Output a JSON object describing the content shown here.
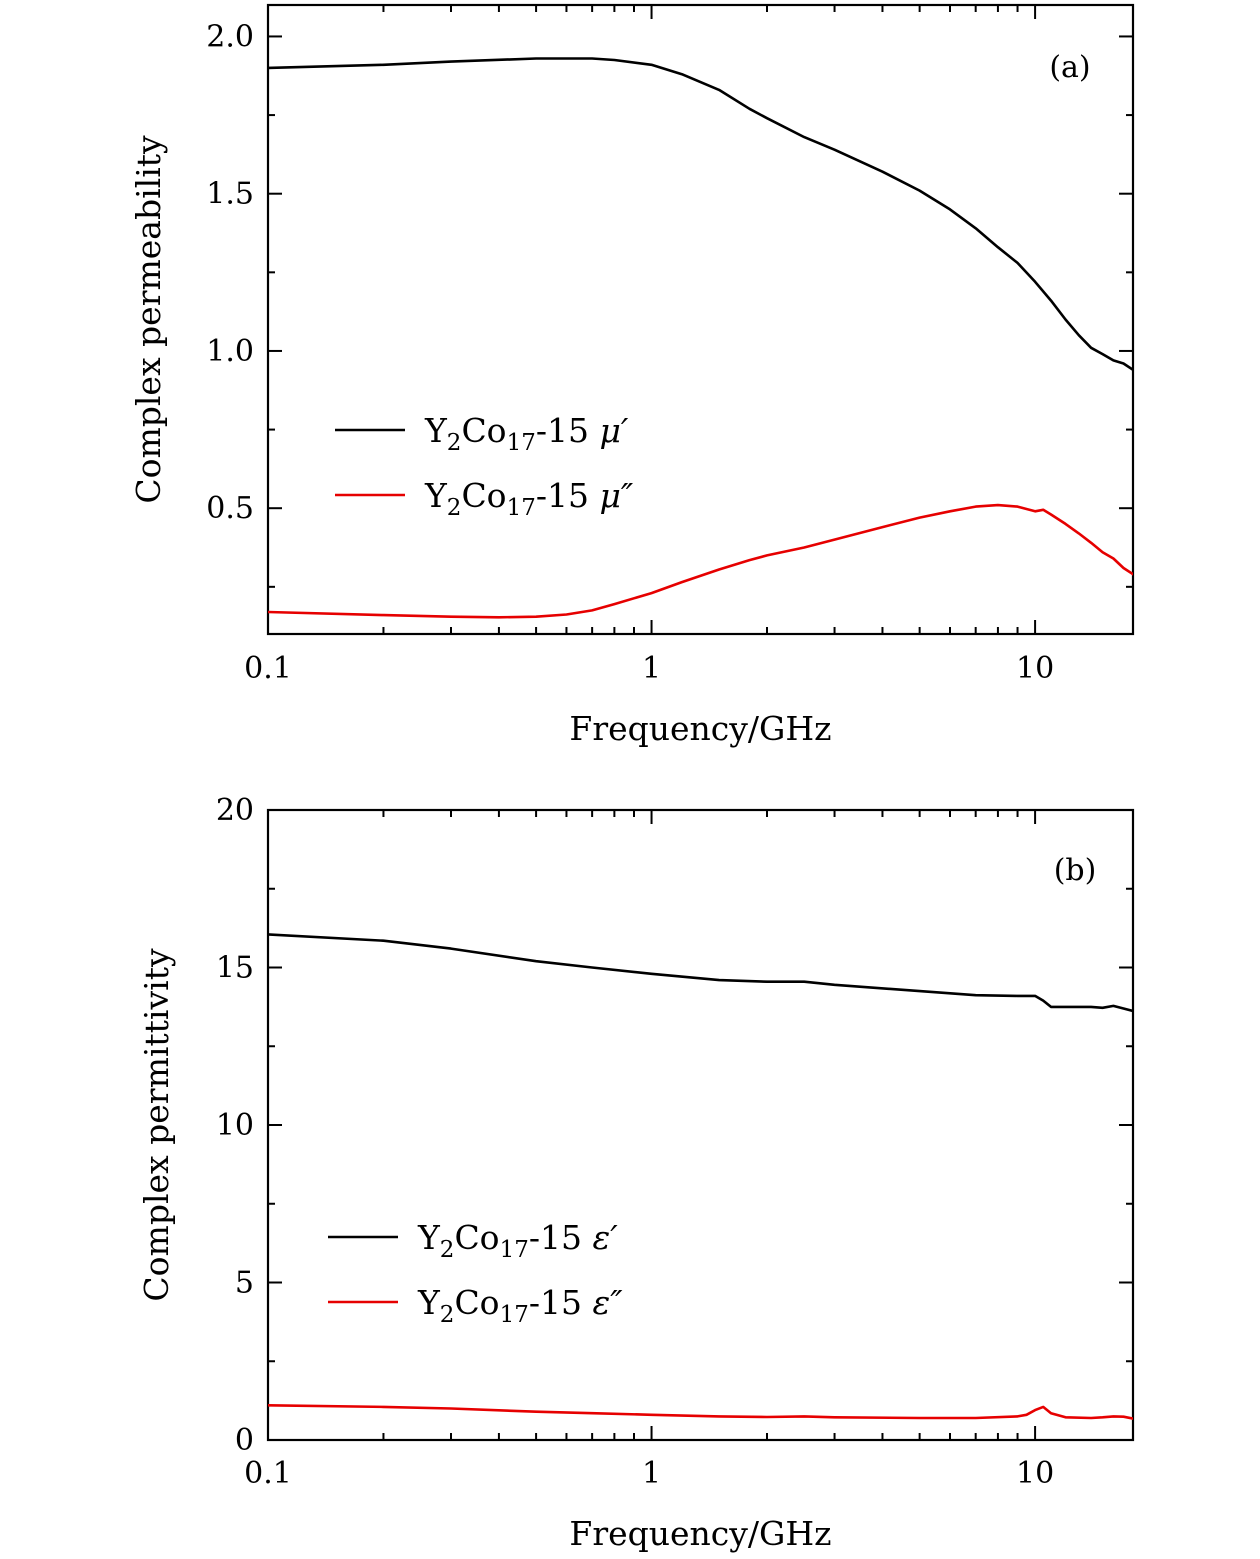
{
  "chart_data": [
    {
      "type": "line",
      "panel": "(a)",
      "xlabel": "Frequency/GHz",
      "ylabel": "Complex permeability",
      "xscale": "log",
      "xlim": [
        0.1,
        18
      ],
      "ylim": [
        0.1,
        2.1
      ],
      "xticks": [
        0.1,
        1,
        10
      ],
      "xtick_labels": [
        "0.1",
        "1",
        "10"
      ],
      "yticks": [
        0.5,
        1.0,
        1.5,
        2.0
      ],
      "ytick_labels": [
        "0.5",
        "1.0",
        "1.5",
        "2.0"
      ],
      "legend_position": "middle-left",
      "series": [
        {
          "name": "Y2Co17-15 μ′",
          "legend": {
            "base": "Y",
            "sub1": "2",
            "mid": "Co",
            "sub2": "17",
            "suffix": "-15 ",
            "symbol": "μ′"
          },
          "color": "#000000",
          "x": [
            0.1,
            0.2,
            0.3,
            0.5,
            0.7,
            0.8,
            1.0,
            1.2,
            1.5,
            1.8,
            2.0,
            2.5,
            3.0,
            4.0,
            5.0,
            6.0,
            7.0,
            8.0,
            9.0,
            10.0,
            11.0,
            12.0,
            13.0,
            14.0,
            15.0,
            16.0,
            17.0,
            18.0
          ],
          "y": [
            1.9,
            1.91,
            1.92,
            1.93,
            1.93,
            1.925,
            1.91,
            1.88,
            1.83,
            1.77,
            1.74,
            1.68,
            1.64,
            1.57,
            1.51,
            1.45,
            1.39,
            1.33,
            1.28,
            1.22,
            1.16,
            1.1,
            1.05,
            1.01,
            0.99,
            0.97,
            0.96,
            0.94
          ]
        },
        {
          "name": "Y2Co17-15 μ″",
          "legend": {
            "base": "Y",
            "sub1": "2",
            "mid": "Co",
            "sub2": "17",
            "suffix": "-15 ",
            "symbol": "μ″"
          },
          "color": "#e60000",
          "x": [
            0.1,
            0.2,
            0.3,
            0.4,
            0.5,
            0.6,
            0.7,
            0.8,
            1.0,
            1.2,
            1.5,
            1.8,
            2.0,
            2.5,
            3.0,
            4.0,
            5.0,
            6.0,
            7.0,
            8.0,
            9.0,
            10.0,
            10.5,
            11.0,
            12.0,
            13.0,
            14.0,
            15.0,
            16.0,
            17.0,
            18.0
          ],
          "y": [
            0.17,
            0.16,
            0.155,
            0.153,
            0.155,
            0.162,
            0.175,
            0.195,
            0.23,
            0.265,
            0.305,
            0.335,
            0.35,
            0.375,
            0.4,
            0.44,
            0.47,
            0.49,
            0.505,
            0.51,
            0.505,
            0.49,
            0.495,
            0.48,
            0.45,
            0.42,
            0.39,
            0.36,
            0.34,
            0.31,
            0.29
          ]
        }
      ]
    },
    {
      "type": "line",
      "panel": "(b)",
      "xlabel": "Frequency/GHz",
      "ylabel": "Complex permittivity",
      "xscale": "log",
      "xlim": [
        0.1,
        18
      ],
      "ylim": [
        0,
        20
      ],
      "xticks": [
        0.1,
        1,
        10
      ],
      "xtick_labels": [
        "0.1",
        "1",
        "10"
      ],
      "yticks": [
        0,
        5,
        10,
        15,
        20
      ],
      "ytick_labels": [
        "0",
        "5",
        "10",
        "15",
        "20"
      ],
      "legend_position": "lower-left",
      "series": [
        {
          "name": "Y2Co17-15 ε′",
          "legend": {
            "base": "Y",
            "sub1": "2",
            "mid": "Co",
            "sub2": "17",
            "suffix": "-15 ",
            "symbol": "ε′"
          },
          "color": "#000000",
          "x": [
            0.1,
            0.2,
            0.3,
            0.5,
            0.7,
            1.0,
            1.5,
            2.0,
            2.5,
            3.0,
            5.0,
            7.0,
            9.0,
            10.0,
            10.5,
            11.0,
            12.0,
            14.0,
            15.0,
            16.0,
            17.0,
            18.0
          ],
          "y": [
            16.05,
            15.85,
            15.6,
            15.2,
            15.0,
            14.8,
            14.6,
            14.55,
            14.55,
            14.45,
            14.25,
            14.12,
            14.1,
            14.1,
            13.95,
            13.75,
            13.75,
            13.75,
            13.72,
            13.78,
            13.7,
            13.62
          ]
        },
        {
          "name": "Y2Co17-15 ε″",
          "legend": {
            "base": "Y",
            "sub1": "2",
            "mid": "Co",
            "sub2": "17",
            "suffix": "-15 ",
            "symbol": "ε″"
          },
          "color": "#e60000",
          "x": [
            0.1,
            0.2,
            0.3,
            0.5,
            0.7,
            1.0,
            1.5,
            2.0,
            2.5,
            3.0,
            5.0,
            7.0,
            9.0,
            9.5,
            10.0,
            10.5,
            11.0,
            12.0,
            14.0,
            15.0,
            16.0,
            17.0,
            18.0
          ],
          "y": [
            1.1,
            1.05,
            1.0,
            0.9,
            0.85,
            0.8,
            0.75,
            0.73,
            0.75,
            0.72,
            0.7,
            0.7,
            0.75,
            0.8,
            0.95,
            1.05,
            0.85,
            0.72,
            0.7,
            0.72,
            0.75,
            0.74,
            0.68
          ]
        }
      ]
    }
  ]
}
